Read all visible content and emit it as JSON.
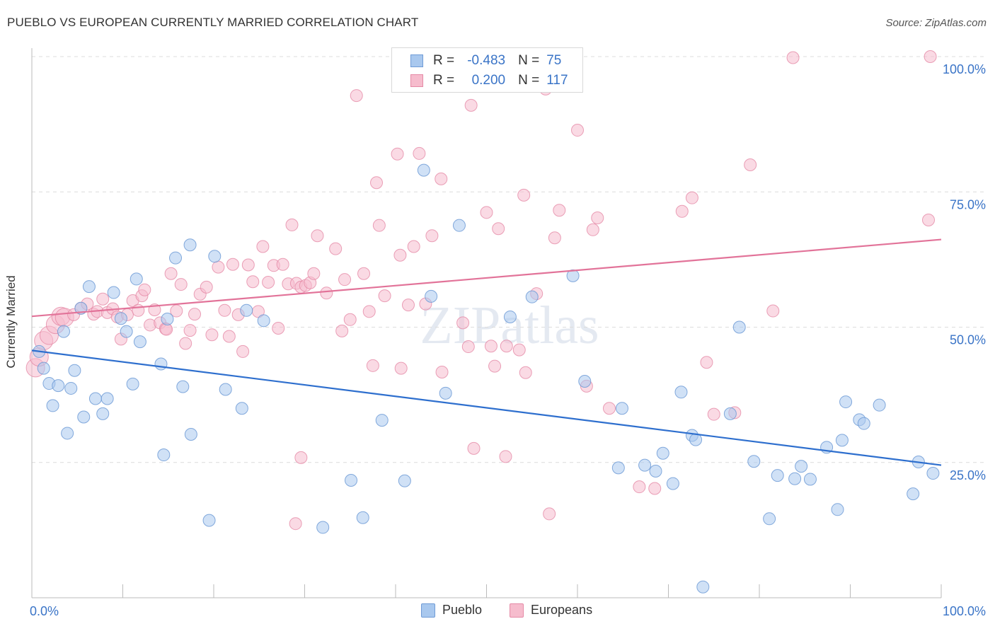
{
  "title": "PUEBLO VS EUROPEAN CURRENTLY MARRIED CORRELATION CHART",
  "source": "Source: ZipAtlas.com",
  "watermark": "ZIPatlas",
  "legend": {
    "rows": [
      {
        "r_label": "R =",
        "r_value": "-0.483",
        "n_label": "N =",
        "n_value": "75",
        "color": "#a9c8ee",
        "border": "#6f9bd6"
      },
      {
        "r_label": "R =",
        "r_value": "0.200",
        "n_label": "N =",
        "n_value": "117",
        "color": "#f6bccd",
        "border": "#e58aa6"
      }
    ]
  },
  "bottom_legend": {
    "pueblo": "Pueblo",
    "europeans": "Europeans"
  },
  "colors": {
    "pueblo_fill": "#a9c8ee",
    "pueblo_stroke": "#6f9bd6",
    "pueblo_line": "#2e6fce",
    "euro_fill": "#f6bccd",
    "euro_stroke": "#e58aa6",
    "euro_line": "#e27399",
    "tick_label": "#3a74c7",
    "grid": "#dcdcdc"
  },
  "chart_data": {
    "type": "scatter",
    "title": "PUEBLO VS EUROPEAN CURRENTLY MARRIED CORRELATION CHART",
    "xlabel": "",
    "ylabel": "Currently Married",
    "xlim": [
      0,
      100
    ],
    "ylim": [
      0,
      100
    ],
    "x_tick_labels": [
      "0.0%",
      "100.0%"
    ],
    "y_tick_labels": [
      "25.0%",
      "50.0%",
      "75.0%",
      "100.0%"
    ],
    "y_ticks": [
      25,
      50,
      75,
      100
    ],
    "grid": true,
    "series": [
      {
        "name": "Pueblo",
        "trend": {
          "x": [
            0,
            100
          ],
          "y": [
            45.7,
            24.5
          ]
        },
        "points": [
          [
            0.8,
            45.5
          ],
          [
            1.3,
            42.4
          ],
          [
            1.9,
            39.6
          ],
          [
            2.3,
            35.5
          ],
          [
            2.9,
            39.2
          ],
          [
            3.5,
            49.2
          ],
          [
            3.9,
            30.4
          ],
          [
            4.3,
            38.7
          ],
          [
            4.7,
            42.0
          ],
          [
            5.4,
            53.5
          ],
          [
            5.7,
            33.4
          ],
          [
            6.3,
            57.5
          ],
          [
            7.0,
            36.8
          ],
          [
            7.8,
            34.0
          ],
          [
            8.3,
            36.8
          ],
          [
            9.0,
            56.4
          ],
          [
            9.8,
            51.6
          ],
          [
            10.4,
            49.2
          ],
          [
            11.1,
            39.5
          ],
          [
            11.9,
            47.3
          ],
          [
            11.5,
            58.9
          ],
          [
            14.2,
            43.2
          ],
          [
            14.5,
            26.4
          ],
          [
            14.9,
            51.5
          ],
          [
            15.8,
            62.8
          ],
          [
            16.6,
            39.0
          ],
          [
            17.4,
            65.2
          ],
          [
            17.5,
            30.2
          ],
          [
            19.5,
            14.3
          ],
          [
            20.1,
            63.1
          ],
          [
            21.3,
            38.5
          ],
          [
            23.1,
            35.0
          ],
          [
            23.6,
            53.1
          ],
          [
            25.5,
            51.2
          ],
          [
            32.0,
            13.0
          ],
          [
            35.1,
            21.7
          ],
          [
            36.4,
            14.8
          ],
          [
            38.5,
            32.8
          ],
          [
            41.0,
            21.6
          ],
          [
            43.1,
            79.0
          ],
          [
            43.9,
            55.7
          ],
          [
            45.5,
            37.8
          ],
          [
            47.0,
            68.8
          ],
          [
            59.5,
            59.5
          ],
          [
            60.8,
            40.0
          ],
          [
            64.5,
            24.0
          ],
          [
            64.9,
            35.0
          ],
          [
            67.4,
            24.5
          ],
          [
            68.6,
            23.4
          ],
          [
            69.4,
            26.7
          ],
          [
            70.5,
            21.1
          ],
          [
            71.4,
            38.0
          ],
          [
            72.6,
            30.0
          ],
          [
            73.0,
            29.2
          ],
          [
            73.8,
            2.0
          ],
          [
            76.8,
            34.0
          ],
          [
            77.8,
            50.0
          ],
          [
            79.4,
            25.2
          ],
          [
            81.1,
            14.6
          ],
          [
            82.0,
            22.6
          ],
          [
            83.9,
            22.0
          ],
          [
            84.6,
            24.3
          ],
          [
            85.6,
            21.9
          ],
          [
            87.4,
            27.8
          ],
          [
            88.6,
            16.3
          ],
          [
            89.1,
            29.1
          ],
          [
            89.5,
            36.2
          ],
          [
            91.0,
            32.9
          ],
          [
            91.5,
            32.2
          ],
          [
            93.2,
            35.6
          ],
          [
            96.9,
            19.2
          ],
          [
            97.5,
            25.1
          ],
          [
            99.1,
            23.0
          ],
          [
            55.0,
            55.6
          ],
          [
            52.6,
            51.9
          ]
        ]
      },
      {
        "name": "Europeans",
        "trend": {
          "x": [
            0,
            100
          ],
          "y": [
            52.0,
            66.2
          ]
        },
        "points": [
          [
            0.4,
            42.5
          ],
          [
            0.8,
            44.5
          ],
          [
            1.3,
            47.5
          ],
          [
            1.9,
            48.5
          ],
          [
            2.6,
            50.5
          ],
          [
            3.2,
            52.0
          ],
          [
            3.6,
            51.8
          ],
          [
            4.6,
            52.3
          ],
          [
            5.4,
            53.5
          ],
          [
            6.1,
            54.3
          ],
          [
            6.8,
            52.4
          ],
          [
            7.2,
            52.9
          ],
          [
            7.8,
            55.2
          ],
          [
            8.3,
            52.7
          ],
          [
            8.9,
            53.4
          ],
          [
            9.4,
            51.9
          ],
          [
            9.8,
            47.8
          ],
          [
            10.5,
            52.3
          ],
          [
            11.1,
            54.9
          ],
          [
            11.7,
            53.1
          ],
          [
            12.1,
            55.8
          ],
          [
            12.4,
            56.9
          ],
          [
            13.0,
            50.4
          ],
          [
            13.5,
            53.2
          ],
          [
            14.1,
            50.8
          ],
          [
            14.7,
            49.7
          ],
          [
            15.3,
            59.9
          ],
          [
            15.9,
            53.0
          ],
          [
            16.4,
            57.9
          ],
          [
            16.9,
            47.0
          ],
          [
            17.4,
            49.4
          ],
          [
            17.9,
            52.4
          ],
          [
            18.5,
            56.1
          ],
          [
            19.2,
            57.4
          ],
          [
            19.8,
            48.6
          ],
          [
            20.5,
            61.1
          ],
          [
            21.2,
            53.1
          ],
          [
            21.7,
            48.3
          ],
          [
            22.1,
            61.6
          ],
          [
            22.7,
            52.3
          ],
          [
            23.2,
            45.5
          ],
          [
            23.8,
            61.5
          ],
          [
            24.3,
            58.4
          ],
          [
            24.9,
            52.9
          ],
          [
            25.4,
            64.9
          ],
          [
            26.0,
            58.3
          ],
          [
            26.6,
            61.4
          ],
          [
            27.1,
            49.8
          ],
          [
            27.6,
            61.6
          ],
          [
            28.2,
            58.0
          ],
          [
            28.6,
            68.9
          ],
          [
            29.1,
            58.1
          ],
          [
            29.6,
            57.4
          ],
          [
            30.1,
            57.7
          ],
          [
            30.6,
            58.2
          ],
          [
            31.0,
            59.9
          ],
          [
            31.4,
            66.9
          ],
          [
            32.4,
            56.3
          ],
          [
            33.4,
            64.5
          ],
          [
            34.1,
            49.3
          ],
          [
            34.4,
            58.8
          ],
          [
            35.0,
            51.4
          ],
          [
            35.7,
            92.8
          ],
          [
            36.5,
            59.9
          ],
          [
            37.1,
            52.9
          ],
          [
            37.5,
            42.9
          ],
          [
            37.9,
            76.7
          ],
          [
            38.2,
            68.8
          ],
          [
            38.8,
            55.8
          ],
          [
            40.2,
            82.0
          ],
          [
            40.6,
            42.4
          ],
          [
            41.4,
            54.1
          ],
          [
            42.0,
            64.9
          ],
          [
            42.6,
            82.1
          ],
          [
            43.3,
            54.3
          ],
          [
            44.0,
            66.9
          ],
          [
            45.0,
            77.4
          ],
          [
            47.4,
            50.8
          ],
          [
            48.3,
            91.0
          ],
          [
            50.0,
            71.2
          ],
          [
            50.5,
            46.5
          ],
          [
            50.9,
            42.8
          ],
          [
            51.3,
            68.2
          ],
          [
            52.2,
            46.5
          ],
          [
            53.6,
            45.8
          ],
          [
            54.1,
            74.4
          ],
          [
            54.3,
            41.6
          ],
          [
            55.5,
            56.2
          ],
          [
            56.9,
            15.5
          ],
          [
            57.5,
            66.5
          ],
          [
            58.0,
            71.6
          ],
          [
            60.0,
            86.4
          ],
          [
            61.0,
            39.1
          ],
          [
            61.7,
            68.0
          ],
          [
            62.2,
            70.2
          ],
          [
            63.5,
            35.0
          ],
          [
            66.8,
            20.5
          ],
          [
            68.5,
            20.2
          ],
          [
            71.5,
            71.4
          ],
          [
            72.6,
            73.9
          ],
          [
            74.2,
            43.5
          ],
          [
            75.0,
            33.9
          ],
          [
            77.3,
            34.2
          ],
          [
            79.0,
            80.0
          ],
          [
            81.5,
            53.0
          ],
          [
            83.7,
            99.8
          ],
          [
            98.6,
            69.8
          ],
          [
            98.8,
            100.0
          ],
          [
            29.0,
            13.7
          ],
          [
            52.1,
            26.1
          ],
          [
            29.6,
            25.9
          ],
          [
            40.5,
            63.3
          ],
          [
            48.6,
            27.6
          ],
          [
            56.5,
            94.0
          ],
          [
            48.0,
            46.4
          ],
          [
            45.1,
            41.7
          ],
          [
            14.8,
            49.6
          ]
        ]
      }
    ]
  }
}
